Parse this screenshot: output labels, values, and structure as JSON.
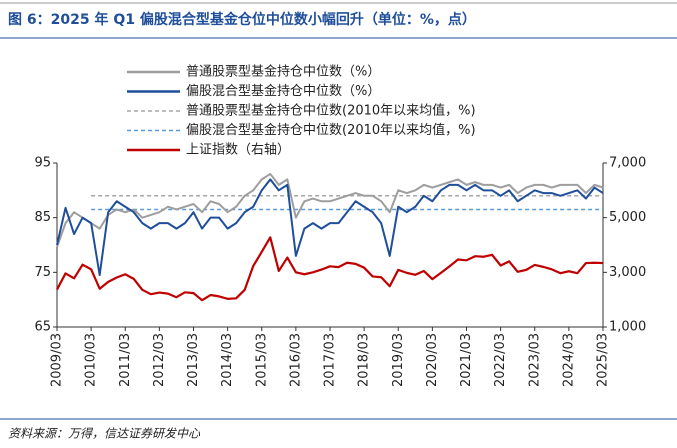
{
  "chart_data": {
    "type": "line",
    "title": "图 6：2025 年 Q1 偏股混合型基金仓位中位数小幅回升（单位：%，点）",
    "source": "资料来源：万得，信达证券研发中心",
    "x": [
      "2009/03",
      null,
      null,
      null,
      "2010/03",
      null,
      null,
      null,
      "2011/03",
      null,
      null,
      null,
      "2012/03",
      null,
      null,
      null,
      "2013/03",
      null,
      null,
      null,
      "2014/03",
      null,
      null,
      null,
      "2015/03",
      null,
      null,
      null,
      "2016/03",
      null,
      null,
      null,
      "2017/03",
      null,
      null,
      null,
      "2018/03",
      null,
      null,
      null,
      "2019/03",
      null,
      null,
      null,
      "2020/03",
      null,
      null,
      null,
      "2021/03",
      null,
      null,
      null,
      "2022/03",
      null,
      null,
      null,
      "2023/03",
      null,
      null,
      null,
      "2024/03",
      null,
      null,
      null,
      "2025/03"
    ],
    "ylim": [
      65,
      95
    ],
    "yticks": [
      65,
      75,
      85,
      95
    ],
    "y2lim": [
      1000,
      7000
    ],
    "y2ticks": [
      {
        "value": 1000,
        "label": "1,000"
      },
      {
        "value": 3000,
        "label": "3,000"
      },
      {
        "value": 5000,
        "label": "5,000"
      },
      {
        "value": 7000,
        "label": "7,000"
      }
    ],
    "series": [
      {
        "name": "普通股票型基金持仓中位数（%）",
        "color": "#9e9e9e",
        "values": [
          79.6,
          84,
          86,
          85,
          84,
          83,
          85.5,
          86.5,
          86,
          86.5,
          85,
          85.5,
          86,
          87,
          86.5,
          87,
          87.5,
          86,
          88,
          87.5,
          86,
          87,
          89,
          90,
          92,
          93,
          91,
          92,
          85,
          88,
          88.5,
          88,
          88,
          88.5,
          89,
          89.5,
          89,
          89,
          88,
          86,
          90,
          89.5,
          90,
          91,
          90.5,
          91,
          91.5,
          92,
          91,
          91.5,
          91,
          91,
          90.5,
          91,
          89.5,
          90.5,
          91,
          91,
          90.5,
          91,
          91,
          91,
          89.5,
          91,
          90.5
        ]
      },
      {
        "name": "偏股混合型基金持仓中位数（%）",
        "color": "#1f4e9a",
        "values": [
          80,
          86.8,
          82,
          85,
          84,
          74.5,
          86,
          88,
          87,
          86,
          84,
          83,
          84,
          84,
          83,
          84,
          86,
          83,
          85,
          85,
          83,
          84,
          86,
          87,
          90,
          92,
          90,
          91,
          78,
          83,
          84,
          83,
          84,
          84,
          86,
          88,
          87,
          86,
          84,
          78,
          87,
          86,
          87,
          89,
          88,
          90,
          91,
          91,
          90,
          91,
          90,
          90,
          89,
          90,
          88,
          89,
          90,
          89.5,
          89.5,
          89,
          89.5,
          90,
          88.5,
          90.5,
          89.5
        ]
      },
      {
        "name": "上证指数（右轴）",
        "color": "#c00000",
        "axis": "y2",
        "values": [
          2370,
          2960,
          2780,
          3280,
          3110,
          2400,
          2650,
          2810,
          2930,
          2760,
          2360,
          2200,
          2260,
          2220,
          2090,
          2270,
          2240,
          1980,
          2170,
          2120,
          2030,
          2050,
          2360,
          3230,
          3750,
          4280,
          3050,
          3540,
          3000,
          2930,
          3000,
          3100,
          3220,
          3190,
          3350,
          3310,
          3170,
          2850,
          2820,
          2490,
          3090,
          2980,
          2910,
          3050,
          2750,
          2980,
          3220,
          3470,
          3440,
          3590,
          3570,
          3640,
          3250,
          3400,
          3020,
          3090,
          3270,
          3200,
          3110,
          2970,
          3040,
          2970,
          3340,
          3350,
          3340
        ]
      }
    ],
    "reference_lines": [
      {
        "name": "普通股票型基金持仓中位数(2010年以来均值，%)",
        "color": "#a6a6a6",
        "value": 89
      },
      {
        "name": "偏股混合型基金持仓中位数(2010年以来均值，%)",
        "color": "#5b9bd5",
        "value": 86.5
      }
    ]
  }
}
